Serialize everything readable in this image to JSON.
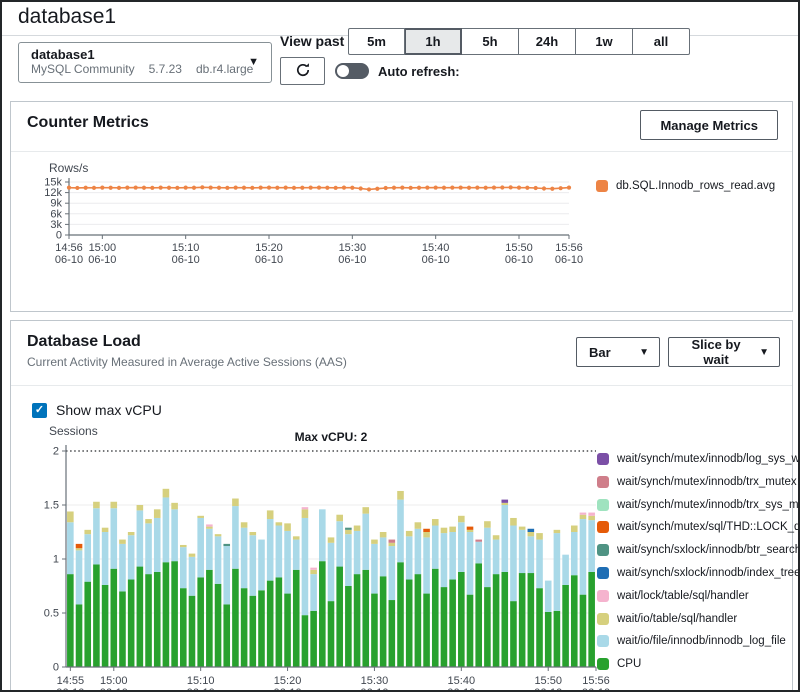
{
  "page": {
    "title": "database1"
  },
  "selector": {
    "name": "database1",
    "engine": "MySQL Community",
    "version": "5.7.23",
    "instance_class": "db.r4.large"
  },
  "icons": {
    "caret_down": "▼",
    "check": "✓"
  },
  "time_controls": {
    "view_past_label": "View past",
    "ranges": [
      {
        "label": "5m",
        "selected": false
      },
      {
        "label": "1h",
        "selected": true
      },
      {
        "label": "5h",
        "selected": false
      },
      {
        "label": "24h",
        "selected": false
      },
      {
        "label": "1w",
        "selected": false
      },
      {
        "label": "all",
        "selected": false
      }
    ],
    "auto_refresh_label": "Auto refresh:",
    "auto_refresh_on": false
  },
  "counter_panel": {
    "title": "Counter Metrics",
    "manage_button_label": "Manage Metrics"
  },
  "load_panel": {
    "title": "Database Load",
    "subtitle": "Current Activity Measured in Average Active Sessions (AAS)",
    "chart_type_value": "Bar",
    "slice_by_value": "Slice by wait",
    "show_max_vcpu_label": "Show max vCPU",
    "show_max_vcpu_checked": true
  },
  "chart_data": [
    {
      "type": "line",
      "panel": "Counter Metrics",
      "ylabel": "Rows/s",
      "ylim": [
        0,
        15000
      ],
      "yticks": [
        {
          "label": "0",
          "value": 0
        },
        {
          "label": "3k",
          "value": 3000
        },
        {
          "label": "6k",
          "value": 6000
        },
        {
          "label": "9k",
          "value": 9000
        },
        {
          "label": "12k",
          "value": 12000
        },
        {
          "label": "15k",
          "value": 15000
        }
      ],
      "x_minutes_span": 60,
      "xticks": [
        {
          "label": "14:56",
          "sub": "06-10",
          "min": 0
        },
        {
          "label": "15:00",
          "sub": "06-10",
          "min": 4
        },
        {
          "label": "15:10",
          "sub": "06-10",
          "min": 14
        },
        {
          "label": "15:20",
          "sub": "06-10",
          "min": 24
        },
        {
          "label": "15:30",
          "sub": "06-10",
          "min": 34
        },
        {
          "label": "15:40",
          "sub": "06-10",
          "min": 44
        },
        {
          "label": "15:50",
          "sub": "06-10",
          "min": 54
        },
        {
          "label": "15:56",
          "sub": "06-10",
          "min": 60
        }
      ],
      "legend_position": "right",
      "series": [
        {
          "name": "db.SQL.Innodb_rows_read.avg",
          "color": "#ed8445",
          "values": [
            13400,
            13320,
            13380,
            13350,
            13400,
            13380,
            13350,
            13400,
            13420,
            13380,
            13350,
            13400,
            13380,
            13350,
            13400,
            13380,
            13500,
            13420,
            13380,
            13350,
            13400,
            13380,
            13350,
            13400,
            13420,
            13380,
            13400,
            13350,
            13380,
            13400,
            13420,
            13380,
            13350,
            13400,
            13380,
            13150,
            12900,
            13100,
            13300,
            13380,
            13400,
            13350,
            13380,
            13400,
            13420,
            13380,
            13400,
            13420,
            13380,
            13400,
            13380,
            13420,
            13450,
            13480,
            13400,
            13380,
            13300,
            13150,
            13100,
            13250,
            13420
          ]
        }
      ]
    },
    {
      "type": "stacked_bar",
      "panel": "Database Load",
      "ylabel": "Sessions",
      "ylim": [
        0,
        2
      ],
      "yticks": [
        {
          "label": "0",
          "value": 0
        },
        {
          "label": "0.5",
          "value": 0.5
        },
        {
          "label": "1",
          "value": 1
        },
        {
          "label": "1.5",
          "value": 1.5
        },
        {
          "label": "2",
          "value": 2
        }
      ],
      "max_vcpu": {
        "label": "Max vCPU: 2",
        "value": 2
      },
      "bar_count": 61,
      "x_minutes_span": 61,
      "xticks": [
        {
          "label": "14:55",
          "sub": "06-10",
          "min": 0
        },
        {
          "label": "15:00",
          "sub": "06-10",
          "min": 5
        },
        {
          "label": "15:10",
          "sub": "06-10",
          "min": 15
        },
        {
          "label": "15:20",
          "sub": "06-10",
          "min": 25
        },
        {
          "label": "15:30",
          "sub": "06-10",
          "min": 35
        },
        {
          "label": "15:40",
          "sub": "06-10",
          "min": 45
        },
        {
          "label": "15:50",
          "sub": "06-10",
          "min": 55
        },
        {
          "label": "15:56",
          "sub": "06-10",
          "min": 61
        }
      ],
      "stack_order": [
        "cpu",
        "io_file",
        "io_table"
      ],
      "series": {
        "cpu": {
          "label": "CPU",
          "color": "#28a12e",
          "values": [
            0.86,
            0.58,
            0.79,
            0.95,
            0.76,
            0.91,
            0.7,
            0.81,
            0.93,
            0.86,
            0.88,
            0.97,
            0.98,
            0.73,
            0.66,
            0.83,
            0.9,
            0.77,
            0.58,
            0.91,
            0.73,
            0.66,
            0.71,
            0.8,
            0.83,
            0.68,
            0.9,
            0.48,
            0.52,
            0.98,
            0.61,
            0.93,
            0.75,
            0.86,
            0.9,
            0.68,
            0.84,
            0.62,
            0.97,
            0.81,
            0.86,
            0.68,
            0.91,
            0.74,
            0.81,
            0.88,
            0.67,
            0.96,
            0.74,
            0.86,
            0.88,
            0.61,
            0.87,
            0.87,
            0.73,
            0.51,
            0.52,
            0.76,
            0.85,
            0.67,
            0.88
          ]
        },
        "io_file": {
          "label": "wait/io/file/innodb/innodb_log_file",
          "color": "#a9d9e8",
          "values": [
            0.48,
            0.5,
            0.44,
            0.52,
            0.49,
            0.56,
            0.44,
            0.41,
            0.52,
            0.47,
            0.5,
            0.6,
            0.48,
            0.38,
            0.36,
            0.55,
            0.38,
            0.44,
            0.54,
            0.58,
            0.56,
            0.56,
            0.47,
            0.57,
            0.48,
            0.58,
            0.28,
            0.9,
            0.34,
            0.48,
            0.54,
            0.42,
            0.48,
            0.4,
            0.52,
            0.46,
            0.36,
            0.5,
            0.58,
            0.4,
            0.42,
            0.52,
            0.4,
            0.5,
            0.44,
            0.46,
            0.58,
            0.2,
            0.55,
            0.32,
            0.62,
            0.7,
            0.4,
            0.34,
            0.45,
            0.29,
            0.72,
            0.28,
            0.4,
            0.7,
            0.48
          ]
        },
        "io_table": {
          "label": "wait/io/table/sql/handler",
          "color": "#d6d07e",
          "values": [
            0.1,
            0.02,
            0.04,
            0.06,
            0.04,
            0.06,
            0.04,
            0.03,
            0.05,
            0.04,
            0.08,
            0.08,
            0.06,
            0.02,
            0.03,
            0.02,
            0.02,
            0.02,
            0.0,
            0.07,
            0.05,
            0.03,
            0.0,
            0.08,
            0.03,
            0.07,
            0.03,
            0.08,
            0.04,
            0.0,
            0.05,
            0.06,
            0.04,
            0.05,
            0.06,
            0.04,
            0.05,
            0.03,
            0.08,
            0.05,
            0.06,
            0.05,
            0.06,
            0.05,
            0.05,
            0.06,
            0.02,
            0.0,
            0.06,
            0.04,
            0.02,
            0.07,
            0.03,
            0.04,
            0.06,
            0.0,
            0.03,
            0.0,
            0.06,
            0.04,
            0.04
          ]
        }
      },
      "extras": [
        {
          "index": 1,
          "key": "thd_lock",
          "value": 0.04
        },
        {
          "index": 16,
          "key": "lock_table",
          "value": 0.02
        },
        {
          "index": 18,
          "key": "btr_search",
          "value": 0.02
        },
        {
          "index": 27,
          "key": "lock_table",
          "value": 0.02
        },
        {
          "index": 28,
          "key": "lock_table",
          "value": 0.02
        },
        {
          "index": 32,
          "key": "btr_search",
          "value": 0.02
        },
        {
          "index": 37,
          "key": "trx_mutex",
          "value": 0.03
        },
        {
          "index": 41,
          "key": "thd_lock",
          "value": 0.03
        },
        {
          "index": 46,
          "key": "thd_lock",
          "value": 0.03
        },
        {
          "index": 47,
          "key": "trx_mutex",
          "value": 0.02
        },
        {
          "index": 50,
          "key": "log_sys",
          "value": 0.03
        },
        {
          "index": 53,
          "key": "index_tree",
          "value": 0.03
        },
        {
          "index": 59,
          "key": "lock_table",
          "value": 0.02
        },
        {
          "index": 60,
          "key": "lock_table",
          "value": 0.03
        }
      ],
      "extra_colors": {
        "log_sys": "#7b4fa6",
        "trx_mutex": "#cf7e8a",
        "trx_sys_mut": "#9fe3bf",
        "thd_lock": "#e55b09",
        "btr_search": "#4f9383",
        "index_tree": "#1f6eb4",
        "lock_table": "#f5b3ce"
      },
      "legend_position": "right",
      "legend": [
        {
          "key": "log_sys",
          "label": "wait/synch/mutex/innodb/log_sys_wri",
          "color": "#7b4fa6"
        },
        {
          "key": "trx_mutex",
          "label": "wait/synch/mutex/innodb/trx_mutex",
          "color": "#cf7e8a"
        },
        {
          "key": "trx_sys_mut",
          "label": "wait/synch/mutex/innodb/trx_sys_mut",
          "color": "#9fe3bf"
        },
        {
          "key": "thd_lock",
          "label": "wait/synch/mutex/sql/THD::LOCK_quer",
          "color": "#e55b09"
        },
        {
          "key": "btr_search",
          "label": "wait/synch/sxlock/innodb/btr_search",
          "color": "#4f9383"
        },
        {
          "key": "index_tree",
          "label": "wait/synch/sxlock/innodb/index_tree",
          "color": "#1f6eb4"
        },
        {
          "key": "lock_table",
          "label": "wait/lock/table/sql/handler",
          "color": "#f5b3ce"
        },
        {
          "key": "io_table",
          "label": "wait/io/table/sql/handler",
          "color": "#d6d07e"
        },
        {
          "key": "io_file",
          "label": "wait/io/file/innodb/innodb_log_file",
          "color": "#a9d9e8"
        },
        {
          "key": "cpu",
          "label": "CPU",
          "color": "#28a12e"
        }
      ]
    }
  ]
}
